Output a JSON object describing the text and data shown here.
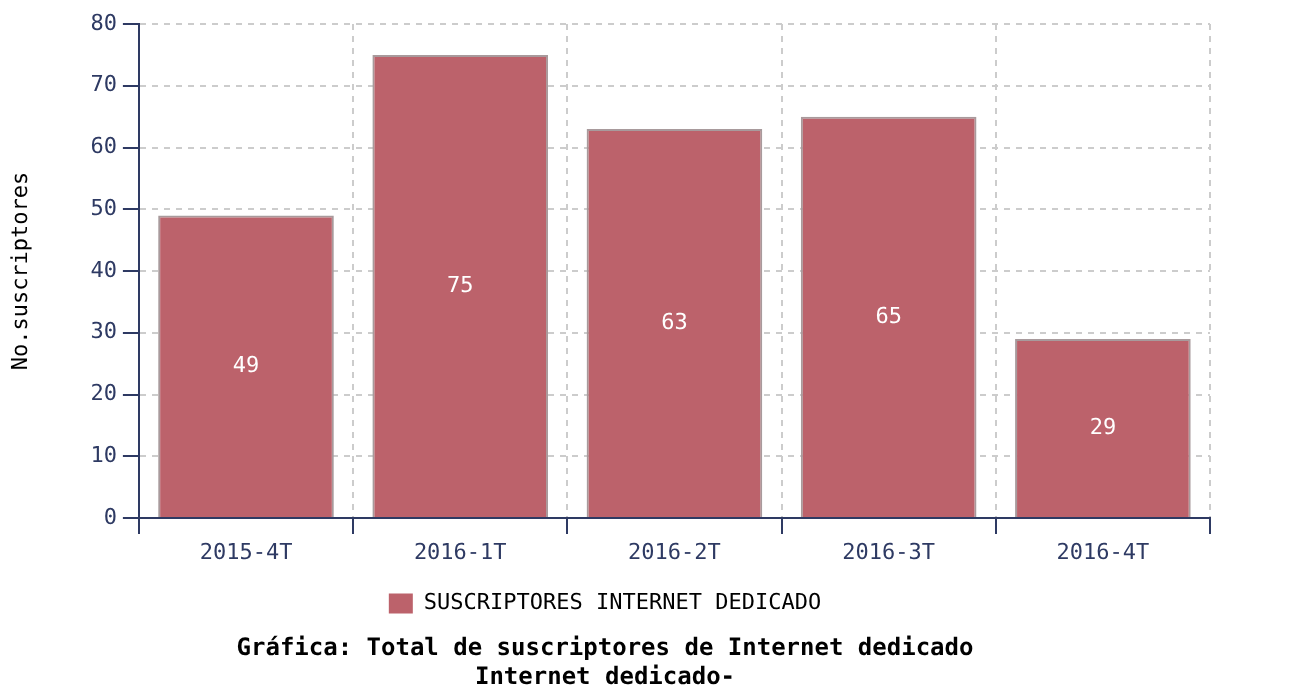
{
  "chart_data": {
    "type": "bar",
    "title": "Gráfica: Total de suscriptores de Internet dedicado",
    "subtitle": "Internet dedicado-",
    "ylabel": "No.suscriptores",
    "categories": [
      "2015-4T",
      "2016-1T",
      "2016-2T",
      "2016-3T",
      "2016-4T"
    ],
    "series": [
      {
        "name": "SUSCRIPTORES INTERNET DEDICADO",
        "color": "#bc626b",
        "values": [
          49,
          75,
          63,
          65,
          29
        ]
      }
    ],
    "ylim": [
      0,
      80
    ],
    "yticks": [
      0,
      10,
      20,
      30,
      40,
      50,
      60,
      70,
      80
    ],
    "grid": true,
    "legend": "bottom",
    "data_labels": true
  }
}
